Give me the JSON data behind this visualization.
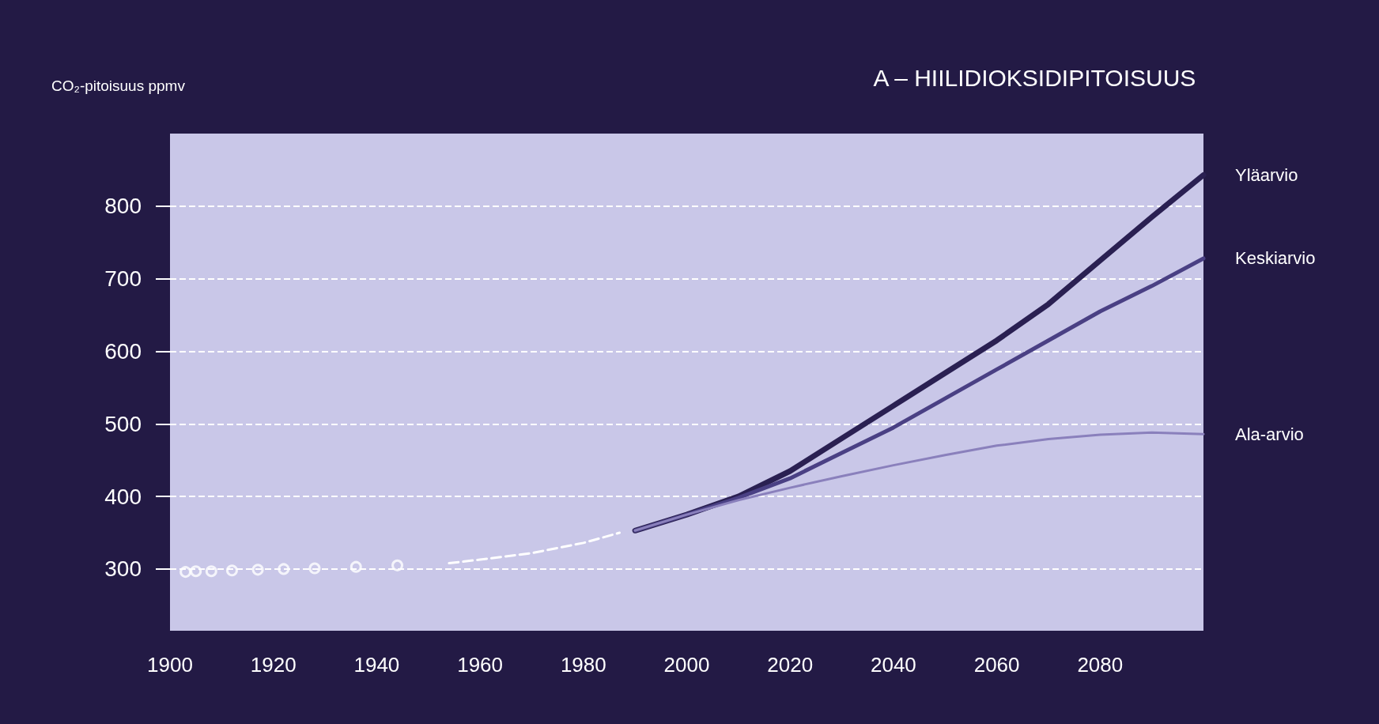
{
  "chart_data": {
    "type": "line",
    "title": "A – HIILIDIOKSIDIPITOISUUS",
    "ylabel": "CO₂-pitoisuus ppmv",
    "xlim": [
      1900,
      2100
    ],
    "xticks": [
      1900,
      1920,
      1940,
      1960,
      1980,
      2000,
      2020,
      2040,
      2060,
      2080
    ],
    "ylim": [
      215,
      900
    ],
    "yticks": [
      300,
      400,
      500,
      600,
      700,
      800
    ],
    "grid": "y",
    "legend": false,
    "series": [
      {
        "type": "scatter",
        "marker": "circle",
        "color": "#ffffff",
        "x": [
          1903,
          1905,
          1908,
          1912,
          1917,
          1922,
          1928,
          1936,
          1944
        ],
        "values": [
          296,
          297,
          297,
          298,
          299,
          300,
          301,
          303,
          305
        ]
      },
      {
        "line_style": "dashed",
        "color": "#ffffff",
        "x": [
          1954,
          1960,
          1970,
          1980,
          1987
        ],
        "values": [
          308,
          313,
          322,
          336,
          350
        ]
      },
      {
        "name": "Yläarvio",
        "color": "#2a2052",
        "x": [
          1990,
          2000,
          2010,
          2020,
          2030,
          2040,
          2050,
          2060,
          2070,
          2080,
          2090,
          2100
        ],
        "values": [
          353,
          375,
          400,
          435,
          480,
          525,
          570,
          615,
          665,
          725,
          785,
          843
        ]
      },
      {
        "name": "Keskiarvio",
        "color": "#4a4084",
        "x": [
          1990,
          2000,
          2010,
          2020,
          2030,
          2040,
          2050,
          2060,
          2070,
          2080,
          2090,
          2100
        ],
        "values": [
          353,
          375,
          398,
          425,
          460,
          495,
          535,
          575,
          615,
          655,
          690,
          728
        ]
      },
      {
        "name": "Ala-arvio",
        "color": "#8a80bc",
        "x": [
          1990,
          2000,
          2010,
          2020,
          2030,
          2040,
          2050,
          2060,
          2070,
          2080,
          2090,
          2100
        ],
        "values": [
          353,
          375,
          395,
          412,
          428,
          443,
          457,
          470,
          479,
          485,
          488,
          486
        ]
      }
    ]
  }
}
